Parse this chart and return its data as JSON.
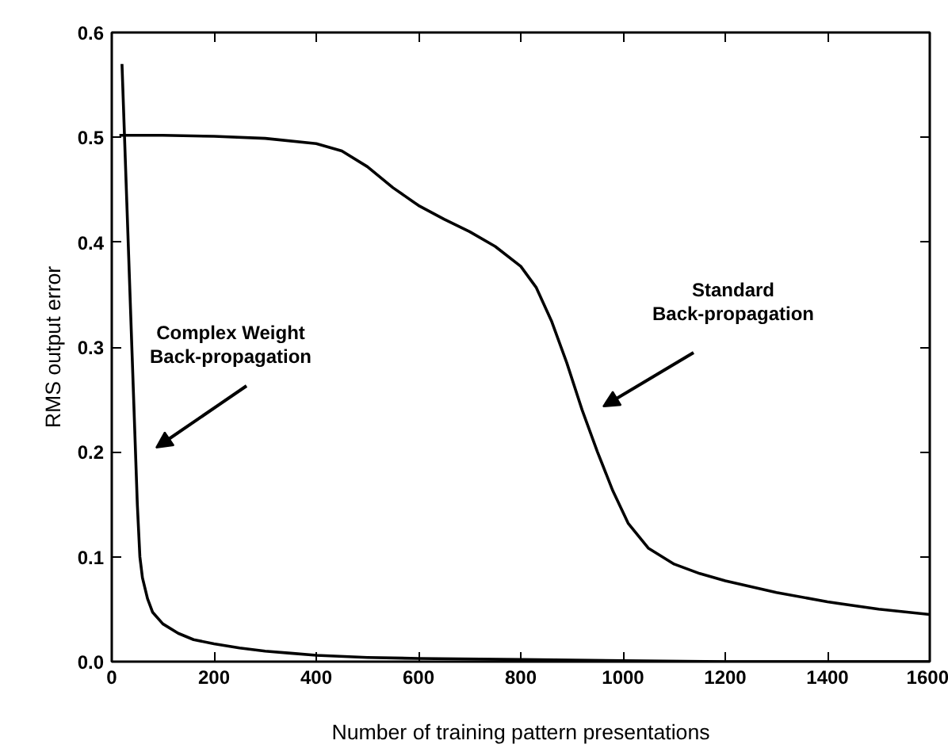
{
  "chart_data": {
    "type": "line",
    "xlabel": "Number of training pattern presentations",
    "ylabel": "RMS output error",
    "xlim": [
      0,
      1600
    ],
    "ylim": [
      0,
      0.6
    ],
    "xticks": [
      0,
      200,
      400,
      600,
      800,
      1000,
      1200,
      1400,
      1600
    ],
    "yticks": [
      {
        "value": 0,
        "label": "0.0"
      },
      0.1,
      0.2,
      0.3,
      0.4,
      0.5,
      0.6
    ],
    "grid": false,
    "series": [
      {
        "color": "#000000",
        "x": [
          15,
          100,
          200,
          300,
          400,
          450,
          500,
          550,
          600,
          650,
          700,
          750,
          800,
          830,
          860,
          890,
          920,
          950,
          980,
          1010,
          1050,
          1100,
          1150,
          1200,
          1300,
          1400,
          1500,
          1600
        ],
        "values": [
          0.502,
          0.502,
          0.501,
          0.499,
          0.494,
          0.487,
          0.472,
          0.452,
          0.435,
          0.422,
          0.41,
          0.396,
          0.377,
          0.357,
          0.325,
          0.285,
          0.24,
          0.2,
          0.163,
          0.132,
          0.108,
          0.093,
          0.084,
          0.077,
          0.066,
          0.057,
          0.05,
          0.045
        ]
      },
      {
        "color": "#000000",
        "x": [
          20,
          30,
          40,
          50,
          55,
          60,
          70,
          80,
          100,
          130,
          160,
          200,
          250,
          300,
          350,
          400,
          500,
          600,
          800,
          1000,
          1200,
          1400,
          1600
        ],
        "values": [
          0.57,
          0.43,
          0.29,
          0.15,
          0.1,
          0.08,
          0.06,
          0.047,
          0.036,
          0.027,
          0.021,
          0.017,
          0.013,
          0.01,
          0.008,
          0.006,
          0.004,
          0.003,
          0.002,
          0.001,
          0,
          0,
          0
        ]
      }
    ],
    "annotations": [
      "Complex Weight\nBack-propagation",
      "Standard\nBack-propagation"
    ]
  }
}
